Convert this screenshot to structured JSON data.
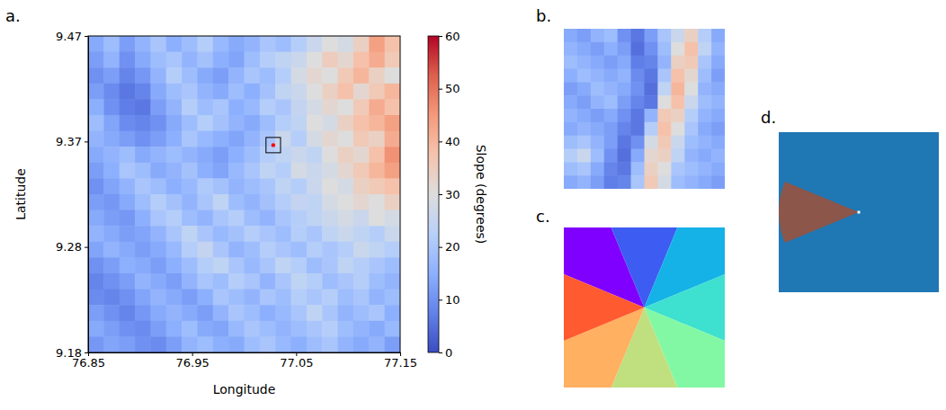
{
  "chart_data": [
    {
      "type": "heatmap",
      "panel_label": "a.",
      "x_label": "Longitude",
      "y_label": "Latitude",
      "xlim": [
        76.85,
        77.15
      ],
      "ylim": [
        9.18,
        9.47
      ],
      "xticks": [
        76.85,
        76.95,
        77.05,
        77.15
      ],
      "yticks": [
        9.18,
        {
          "value": 9.2767,
          "label": "9.28"
        },
        {
          "value": 9.3733,
          "label": "9.37"
        },
        9.47
      ],
      "colorbar": {
        "label": "Slope (degrees)",
        "range": [
          0,
          60
        ],
        "ticks": [
          0,
          10,
          20,
          30,
          40,
          50,
          60
        ]
      },
      "box": {
        "x": [
          77.021,
          77.035
        ],
        "y": [
          9.363,
          9.377
        ]
      },
      "point": {
        "x": 77.028,
        "y": 9.37,
        "color": "red"
      },
      "cells": [
        [
          14,
          18,
          12,
          16,
          20,
          15,
          18,
          22,
          17,
          14,
          16,
          20,
          18,
          22,
          26,
          30,
          28,
          34,
          44,
          38
        ],
        [
          12,
          16,
          10,
          14,
          18,
          20,
          16,
          19,
          15,
          13,
          18,
          22,
          24,
          26,
          30,
          35,
          32,
          38,
          42,
          36
        ],
        [
          10,
          12,
          8,
          11,
          16,
          22,
          18,
          14,
          12,
          16,
          20,
          18,
          22,
          28,
          32,
          30,
          36,
          40,
          34,
          30
        ],
        [
          12,
          9,
          6,
          8,
          14,
          18,
          20,
          16,
          14,
          18,
          15,
          19,
          24,
          26,
          30,
          34,
          38,
          32,
          36,
          40
        ],
        [
          15,
          10,
          7,
          6,
          12,
          16,
          22,
          18,
          20,
          15,
          17,
          22,
          20,
          25,
          28,
          32,
          30,
          36,
          42,
          38
        ],
        [
          18,
          13,
          9,
          8,
          10,
          14,
          18,
          22,
          19,
          16,
          14,
          18,
          22,
          24,
          30,
          28,
          34,
          38,
          40,
          44
        ],
        [
          16,
          14,
          12,
          10,
          12,
          15,
          20,
          17,
          15,
          13,
          16,
          20,
          26,
          22,
          28,
          32,
          30,
          36,
          34,
          42
        ],
        [
          14,
          16,
          18,
          14,
          16,
          18,
          16,
          14,
          12,
          15,
          18,
          22,
          24,
          26,
          24,
          30,
          34,
          32,
          38,
          46
        ],
        [
          12,
          15,
          20,
          18,
          14,
          16,
          19,
          15,
          13,
          17,
          20,
          24,
          22,
          28,
          26,
          28,
          32,
          36,
          40,
          44
        ],
        [
          10,
          13,
          16,
          20,
          18,
          15,
          17,
          21,
          19,
          16,
          18,
          20,
          24,
          22,
          26,
          30,
          28,
          34,
          36,
          38
        ],
        [
          12,
          11,
          14,
          18,
          22,
          19,
          16,
          20,
          24,
          18,
          16,
          19,
          22,
          25,
          24,
          28,
          30,
          32,
          30,
          34
        ],
        [
          14,
          12,
          11,
          15,
          20,
          22,
          18,
          16,
          20,
          22,
          18,
          16,
          20,
          22,
          24,
          26,
          28,
          26,
          30,
          28
        ],
        [
          16,
          14,
          12,
          13,
          16,
          20,
          24,
          20,
          17,
          19,
          22,
          20,
          18,
          22,
          20,
          24,
          26,
          24,
          22,
          26
        ],
        [
          13,
          16,
          14,
          12,
          14,
          17,
          22,
          25,
          20,
          16,
          18,
          22,
          20,
          18,
          22,
          20,
          22,
          26,
          24,
          22
        ],
        [
          10,
          12,
          15,
          14,
          12,
          15,
          18,
          22,
          24,
          20,
          17,
          20,
          24,
          22,
          18,
          20,
          24,
          22,
          20,
          18
        ],
        [
          8,
          10,
          12,
          16,
          14,
          12,
          16,
          20,
          18,
          22,
          20,
          16,
          20,
          24,
          22,
          18,
          20,
          22,
          18,
          16
        ],
        [
          9,
          8,
          10,
          13,
          16,
          14,
          12,
          15,
          20,
          18,
          16,
          20,
          18,
          22,
          20,
          22,
          18,
          20,
          16,
          18
        ],
        [
          12,
          10,
          8,
          11,
          14,
          16,
          14,
          12,
          16,
          20,
          18,
          15,
          17,
          20,
          24,
          20,
          16,
          18,
          20,
          15
        ],
        [
          14,
          12,
          10,
          9,
          12,
          15,
          18,
          14,
          13,
          17,
          20,
          18,
          16,
          18,
          20,
          22,
          18,
          16,
          14,
          17
        ],
        [
          11,
          13,
          12,
          10,
          9,
          12,
          16,
          18,
          15,
          14,
          18,
          20,
          17,
          15,
          18,
          20,
          16,
          14,
          16,
          12
        ]
      ]
    },
    {
      "type": "heatmap",
      "panel_label": "b.",
      "tick_labels": false,
      "color_range": [
        0,
        60
      ],
      "cells": [
        [
          14,
          12,
          16,
          18,
          10,
          6,
          12,
          20,
          26,
          34,
          22,
          14
        ],
        [
          16,
          14,
          12,
          15,
          12,
          5,
          10,
          18,
          30,
          38,
          24,
          16
        ],
        [
          18,
          16,
          14,
          12,
          14,
          7,
          8,
          16,
          34,
          36,
          20,
          14
        ],
        [
          15,
          18,
          16,
          14,
          16,
          9,
          6,
          20,
          38,
          32,
          18,
          12
        ],
        [
          12,
          14,
          18,
          16,
          14,
          10,
          5,
          24,
          40,
          30,
          16,
          14
        ],
        [
          14,
          12,
          16,
          18,
          12,
          8,
          6,
          30,
          38,
          26,
          18,
          16
        ],
        [
          16,
          14,
          12,
          14,
          10,
          6,
          16,
          36,
          34,
          22,
          16,
          14
        ],
        [
          14,
          16,
          14,
          12,
          8,
          6,
          22,
          38,
          30,
          20,
          14,
          12
        ],
        [
          18,
          20,
          16,
          12,
          6,
          10,
          28,
          36,
          26,
          18,
          16,
          14
        ],
        [
          22,
          26,
          18,
          10,
          5,
          14,
          32,
          34,
          24,
          16,
          14,
          16
        ],
        [
          18,
          20,
          14,
          8,
          6,
          18,
          34,
          30,
          20,
          18,
          16,
          14
        ],
        [
          14,
          16,
          12,
          7,
          8,
          20,
          36,
          28,
          18,
          16,
          14,
          12
        ]
      ]
    },
    {
      "type": "sectors",
      "panel_label": "c.",
      "sector_centers": [
        315,
        0,
        45,
        90,
        135,
        180,
        225,
        270
      ],
      "sector_width": 45,
      "colors": [
        "#8000ff",
        "#3c5cf2",
        "#14b2e6",
        "#3ee0d0",
        "#82f8a4",
        "#c0e080",
        "#ffb060",
        "#ff5a30"
      ]
    },
    {
      "type": "sector_mask",
      "panel_label": "d.",
      "sector_center": 270,
      "sector_width": 45,
      "colors": [
        "#1f77b4",
        "#8c564b"
      ],
      "point": {
        "color": "white"
      }
    }
  ]
}
